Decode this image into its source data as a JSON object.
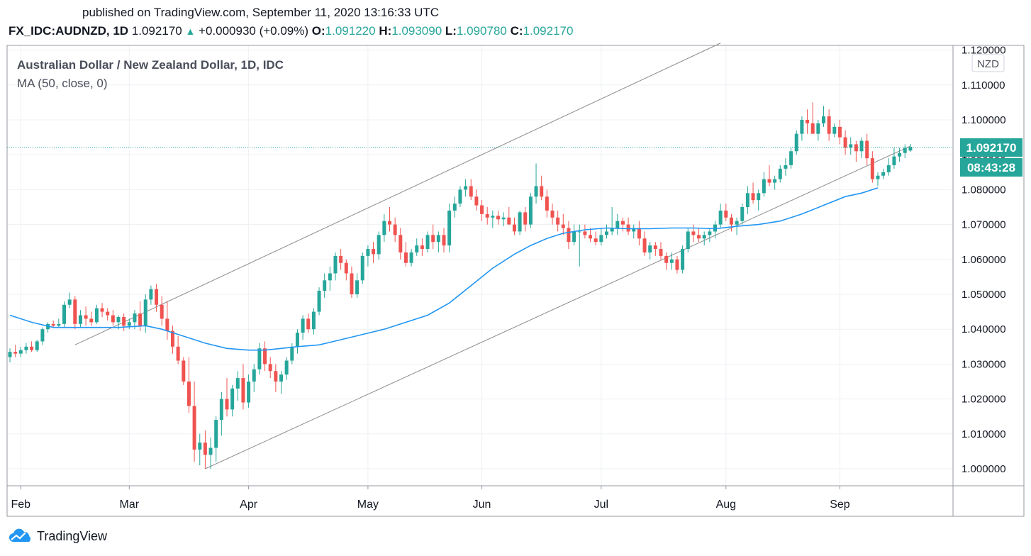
{
  "header": {
    "published": "published on TradingView.com, September 11, 2020 13:16:33 UTC",
    "symbol": "FX_IDC:AUDNZD, 1D",
    "last": "1.092170",
    "change_arrow": "▲",
    "change": "+0.000930 (+0.09%)",
    "o_label": "O:",
    "o_value": "1.091220",
    "h_label": "H:",
    "h_value": "1.093090",
    "l_label": "L:",
    "l_value": "1.090780",
    "c_label": "C:",
    "c_value": "1.092170"
  },
  "legend": {
    "title": "Australian Dollar / New Zealand Dollar, 1D, IDC",
    "ma": "MA (50, close, 0)"
  },
  "axis": {
    "currency": "NZD",
    "price_tag": "1.092170",
    "countdown": "08:43:28"
  },
  "footer": {
    "brand": "TradingView"
  },
  "colors": {
    "up": "#26a69a",
    "down": "#ef5350",
    "ma": "#2196f3",
    "channel": "#8c8c8c",
    "grid": "#eef0f3",
    "tag": "#26a69a"
  },
  "chart_data": {
    "type": "candlestick",
    "x_unit": "trading days from 2020-01-30 (Feb tick at day 2)",
    "ylim": [
      0.9965,
      1.1215
    ],
    "price_ticks": [
      "1.000000",
      "1.010000",
      "1.020000",
      "1.030000",
      "1.040000",
      "1.050000",
      "1.060000",
      "1.070000",
      "1.080000",
      "1.090000",
      "1.100000",
      "1.110000",
      "1.120000"
    ],
    "months": [
      {
        "label": "Feb",
        "day": 2
      },
      {
        "label": "Mar",
        "day": 22
      },
      {
        "label": "Apr",
        "day": 44
      },
      {
        "label": "May",
        "day": 66
      },
      {
        "label": "Jun",
        "day": 87
      },
      {
        "label": "Jul",
        "day": 109
      },
      {
        "label": "Aug",
        "day": 132
      },
      {
        "label": "Sep",
        "day": 153
      }
    ],
    "last_price": 1.09217,
    "candles": [
      [
        1.032,
        1.0345,
        1.0305,
        1.0335
      ],
      [
        1.0335,
        1.0355,
        1.032,
        1.033
      ],
      [
        1.033,
        1.035,
        1.032,
        1.034
      ],
      [
        1.034,
        1.036,
        1.033,
        1.035
      ],
      [
        1.035,
        1.0365,
        1.0335,
        1.034
      ],
      [
        1.034,
        1.037,
        1.0335,
        1.0365
      ],
      [
        1.0365,
        1.0405,
        1.0355,
        1.04
      ],
      [
        1.04,
        1.042,
        1.039,
        1.0415
      ],
      [
        1.0415,
        1.0425,
        1.0405,
        1.041
      ],
      [
        1.041,
        1.043,
        1.0405,
        1.0415
      ],
      [
        1.0415,
        1.048,
        1.0405,
        1.047
      ],
      [
        1.047,
        1.0505,
        1.046,
        1.0485
      ],
      [
        1.0485,
        1.0495,
        1.04,
        1.0415
      ],
      [
        1.0415,
        1.0455,
        1.0405,
        1.044
      ],
      [
        1.044,
        1.0465,
        1.041,
        1.043
      ],
      [
        1.043,
        1.045,
        1.041,
        1.042
      ],
      [
        1.042,
        1.047,
        1.0415,
        1.046
      ],
      [
        1.046,
        1.0475,
        1.0435,
        1.045
      ],
      [
        1.045,
        1.046,
        1.0425,
        1.044
      ],
      [
        1.044,
        1.0455,
        1.041,
        1.042
      ],
      [
        1.042,
        1.044,
        1.04,
        1.0435
      ],
      [
        1.0435,
        1.0445,
        1.0395,
        1.041
      ],
      [
        1.041,
        1.043,
        1.04,
        1.042
      ],
      [
        1.042,
        1.0455,
        1.04,
        1.0445
      ],
      [
        1.0445,
        1.048,
        1.0395,
        1.041
      ],
      [
        1.041,
        1.05,
        1.039,
        1.0485
      ],
      [
        1.0485,
        1.0525,
        1.047,
        1.0515
      ],
      [
        1.0515,
        1.053,
        1.045,
        1.047
      ],
      [
        1.047,
        1.0495,
        1.041,
        1.043
      ],
      [
        1.043,
        1.048,
        1.037,
        1.0395
      ],
      [
        1.0395,
        1.041,
        1.033,
        1.035
      ],
      [
        1.035,
        1.038,
        1.03,
        1.031
      ],
      [
        1.031,
        1.032,
        1.024,
        1.025
      ],
      [
        1.025,
        1.032,
        1.016,
        1.018
      ],
      [
        1.018,
        1.025,
        1.002,
        1.0055
      ],
      [
        1.0055,
        1.01,
        1.001,
        1.0075
      ],
      [
        1.0075,
        1.011,
        1.0,
        1.004
      ],
      [
        1.004,
        1.009,
        1.0,
        1.006
      ],
      [
        1.006,
        1.015,
        1.002,
        1.014
      ],
      [
        1.014,
        1.022,
        1.0095,
        1.02
      ],
      [
        1.02,
        1.026,
        1.015,
        1.017
      ],
      [
        1.017,
        1.024,
        1.015,
        1.023
      ],
      [
        1.023,
        1.028,
        1.0195,
        1.026
      ],
      [
        1.026,
        1.03,
        1.017,
        1.019
      ],
      [
        1.019,
        1.027,
        1.0175,
        1.025
      ],
      [
        1.025,
        1.03,
        1.022,
        1.0285
      ],
      [
        1.0285,
        1.036,
        1.027,
        1.0345
      ],
      [
        1.0345,
        1.0365,
        1.028,
        1.03
      ],
      [
        1.03,
        1.032,
        1.026,
        1.028
      ],
      [
        1.028,
        1.03,
        1.022,
        1.025
      ],
      [
        1.025,
        1.028,
        1.0215,
        1.027
      ],
      [
        1.027,
        1.032,
        1.0255,
        1.031
      ],
      [
        1.031,
        1.036,
        1.03,
        1.035
      ],
      [
        1.035,
        1.04,
        1.033,
        1.039
      ],
      [
        1.039,
        1.044,
        1.037,
        1.043
      ],
      [
        1.043,
        1.0445,
        1.039,
        1.04
      ],
      [
        1.04,
        1.046,
        1.0385,
        1.045
      ],
      [
        1.045,
        1.052,
        1.044,
        1.051
      ],
      [
        1.051,
        1.056,
        1.049,
        1.054
      ],
      [
        1.054,
        1.058,
        1.051,
        1.056
      ],
      [
        1.056,
        1.062,
        1.054,
        1.061
      ],
      [
        1.061,
        1.063,
        1.057,
        1.059
      ],
      [
        1.059,
        1.06,
        1.054,
        1.056
      ],
      [
        1.056,
        1.058,
        1.049,
        1.05
      ],
      [
        1.05,
        1.056,
        1.049,
        1.054
      ],
      [
        1.054,
        1.062,
        1.053,
        1.061
      ],
      [
        1.061,
        1.064,
        1.058,
        1.063
      ],
      [
        1.063,
        1.065,
        1.059,
        1.0615
      ],
      [
        1.0615,
        1.068,
        1.06,
        1.067
      ],
      [
        1.067,
        1.073,
        1.065,
        1.071
      ],
      [
        1.071,
        1.075,
        1.068,
        1.07
      ],
      [
        1.07,
        1.072,
        1.065,
        1.067
      ],
      [
        1.067,
        1.069,
        1.06,
        1.062
      ],
      [
        1.062,
        1.065,
        1.058,
        1.059
      ],
      [
        1.059,
        1.063,
        1.058,
        1.062
      ],
      [
        1.062,
        1.066,
        1.061,
        1.064
      ],
      [
        1.064,
        1.066,
        1.061,
        1.063
      ],
      [
        1.063,
        1.068,
        1.062,
        1.067
      ],
      [
        1.067,
        1.07,
        1.063,
        1.065
      ],
      [
        1.065,
        1.068,
        1.062,
        1.067
      ],
      [
        1.067,
        1.069,
        1.062,
        1.064
      ],
      [
        1.064,
        1.076,
        1.062,
        1.074
      ],
      [
        1.074,
        1.078,
        1.072,
        1.076
      ],
      [
        1.076,
        1.081,
        1.075,
        1.08
      ],
      [
        1.08,
        1.083,
        1.078,
        1.081
      ],
      [
        1.081,
        1.083,
        1.077,
        1.078
      ],
      [
        1.078,
        1.08,
        1.074,
        1.0755
      ],
      [
        1.0755,
        1.077,
        1.071,
        1.073
      ],
      [
        1.073,
        1.075,
        1.07,
        1.072
      ],
      [
        1.072,
        1.074,
        1.069,
        1.0725
      ],
      [
        1.0725,
        1.074,
        1.07,
        1.0715
      ],
      [
        1.0715,
        1.0735,
        1.0695,
        1.072
      ],
      [
        1.072,
        1.075,
        1.07,
        1.07
      ],
      [
        1.07,
        1.072,
        1.067,
        1.068
      ],
      [
        1.068,
        1.074,
        1.067,
        1.0735
      ],
      [
        1.0735,
        1.075,
        1.068,
        1.07
      ],
      [
        1.07,
        1.079,
        1.069,
        1.078
      ],
      [
        1.078,
        1.0875,
        1.076,
        1.081
      ],
      [
        1.081,
        1.084,
        1.077,
        1.078
      ],
      [
        1.078,
        1.08,
        1.072,
        1.074
      ],
      [
        1.074,
        1.076,
        1.07,
        1.072
      ],
      [
        1.072,
        1.074,
        1.068,
        1.07
      ],
      [
        1.07,
        1.073,
        1.067,
        1.069
      ],
      [
        1.069,
        1.071,
        1.063,
        1.065
      ],
      [
        1.065,
        1.07,
        1.064,
        1.068
      ],
      [
        1.068,
        1.07,
        1.058,
        1.068
      ],
      [
        1.068,
        1.07,
        1.066,
        1.067
      ],
      [
        1.067,
        1.069,
        1.065,
        1.066
      ],
      [
        1.066,
        1.068,
        1.064,
        1.065
      ],
      [
        1.065,
        1.069,
        1.064,
        1.067
      ],
      [
        1.067,
        1.07,
        1.066,
        1.068
      ],
      [
        1.068,
        1.075,
        1.067,
        1.069
      ],
      [
        1.069,
        1.073,
        1.067,
        1.071
      ],
      [
        1.071,
        1.072,
        1.068,
        1.07
      ],
      [
        1.07,
        1.072,
        1.067,
        1.068
      ],
      [
        1.068,
        1.07,
        1.066,
        1.069
      ],
      [
        1.069,
        1.071,
        1.064,
        1.066
      ],
      [
        1.066,
        1.068,
        1.061,
        1.062
      ],
      [
        1.062,
        1.065,
        1.06,
        1.064
      ],
      [
        1.064,
        1.065,
        1.061,
        1.063
      ],
      [
        1.063,
        1.065,
        1.06,
        1.061
      ],
      [
        1.061,
        1.062,
        1.057,
        1.059
      ],
      [
        1.059,
        1.062,
        1.057,
        1.06
      ],
      [
        1.06,
        1.061,
        1.056,
        1.057
      ],
      [
        1.057,
        1.064,
        1.056,
        1.063
      ],
      [
        1.063,
        1.069,
        1.062,
        1.068
      ],
      [
        1.068,
        1.07,
        1.065,
        1.067
      ],
      [
        1.067,
        1.069,
        1.065,
        1.066
      ],
      [
        1.066,
        1.068,
        1.064,
        1.067
      ],
      [
        1.067,
        1.069,
        1.065,
        1.068
      ],
      [
        1.068,
        1.071,
        1.066,
        1.07
      ],
      [
        1.07,
        1.076,
        1.069,
        1.074
      ],
      [
        1.074,
        1.076,
        1.071,
        1.072
      ],
      [
        1.072,
        1.073,
        1.068,
        1.07
      ],
      [
        1.07,
        1.072,
        1.067,
        1.071
      ],
      [
        1.071,
        1.076,
        1.07,
        1.075
      ],
      [
        1.075,
        1.081,
        1.073,
        1.079
      ],
      [
        1.079,
        1.082,
        1.076,
        1.077
      ],
      [
        1.077,
        1.08,
        1.074,
        1.079
      ],
      [
        1.079,
        1.085,
        1.078,
        1.083
      ],
      [
        1.083,
        1.087,
        1.081,
        1.082
      ],
      [
        1.082,
        1.084,
        1.08,
        1.083
      ],
      [
        1.083,
        1.087,
        1.082,
        1.086
      ],
      [
        1.086,
        1.089,
        1.084,
        1.087
      ],
      [
        1.087,
        1.092,
        1.086,
        1.091
      ],
      [
        1.091,
        1.097,
        1.09,
        1.096
      ],
      [
        1.096,
        1.101,
        1.094,
        1.1
      ],
      [
        1.1,
        1.103,
        1.096,
        1.099
      ],
      [
        1.099,
        1.105,
        1.097,
        1.096
      ],
      [
        1.096,
        1.1,
        1.094,
        1.099
      ],
      [
        1.099,
        1.104,
        1.098,
        1.101
      ],
      [
        1.101,
        1.103,
        1.094,
        1.096
      ],
      [
        1.096,
        1.099,
        1.095,
        1.098
      ],
      [
        1.098,
        1.1,
        1.093,
        1.095
      ],
      [
        1.095,
        1.097,
        1.09,
        1.092
      ],
      [
        1.092,
        1.095,
        1.09,
        1.093
      ],
      [
        1.093,
        1.094,
        1.088,
        1.091
      ],
      [
        1.091,
        1.095,
        1.089,
        1.094
      ],
      [
        1.094,
        1.096,
        1.087,
        1.089
      ],
      [
        1.089,
        1.091,
        1.082,
        1.083
      ],
      [
        1.083,
        1.085,
        1.081,
        1.084
      ],
      [
        1.084,
        1.086,
        1.083,
        1.085
      ],
      [
        1.085,
        1.089,
        1.084,
        1.087
      ],
      [
        1.087,
        1.092,
        1.086,
        1.0895
      ],
      [
        1.0895,
        1.092,
        1.088,
        1.0905
      ],
      [
        1.0905,
        1.093,
        1.089,
        1.092
      ],
      [
        1.0912,
        1.0931,
        1.0908,
        1.0922
      ]
    ],
    "ma50": [
      [
        0,
        1.044
      ],
      [
        4,
        1.042
      ],
      [
        8,
        1.0405
      ],
      [
        14,
        1.0405
      ],
      [
        20,
        1.0405
      ],
      [
        25,
        1.041
      ],
      [
        28,
        1.04
      ],
      [
        32,
        1.038
      ],
      [
        36,
        1.036
      ],
      [
        40,
        1.0345
      ],
      [
        44,
        1.034
      ],
      [
        47,
        1.034
      ],
      [
        50,
        1.0345
      ],
      [
        53,
        1.035
      ],
      [
        57,
        1.0355
      ],
      [
        61,
        1.037
      ],
      [
        65,
        1.0385
      ],
      [
        69,
        1.04
      ],
      [
        73,
        1.042
      ],
      [
        77,
        1.044
      ],
      [
        81,
        1.0475
      ],
      [
        85,
        1.0525
      ],
      [
        89,
        1.0575
      ],
      [
        93,
        1.0615
      ],
      [
        96,
        1.064
      ],
      [
        99,
        1.066
      ],
      [
        102,
        1.0675
      ],
      [
        106,
        1.0685
      ],
      [
        110,
        1.069
      ],
      [
        114,
        1.0688
      ],
      [
        118,
        1.0688
      ],
      [
        122,
        1.069
      ],
      [
        126,
        1.069
      ],
      [
        130,
        1.0688
      ],
      [
        134,
        1.0695
      ],
      [
        138,
        1.07
      ],
      [
        142,
        1.071
      ],
      [
        146,
        1.073
      ],
      [
        150,
        1.0755
      ],
      [
        154,
        1.078
      ],
      [
        157,
        1.079
      ],
      [
        160,
        1.0805
      ]
    ],
    "channel_lines": [
      {
        "from": [
          12,
          1.0355
        ],
        "to": [
          131,
          1.122
        ]
      },
      {
        "from": [
          36,
          1.0
        ],
        "to": [
          166,
          1.0925
        ]
      }
    ]
  }
}
